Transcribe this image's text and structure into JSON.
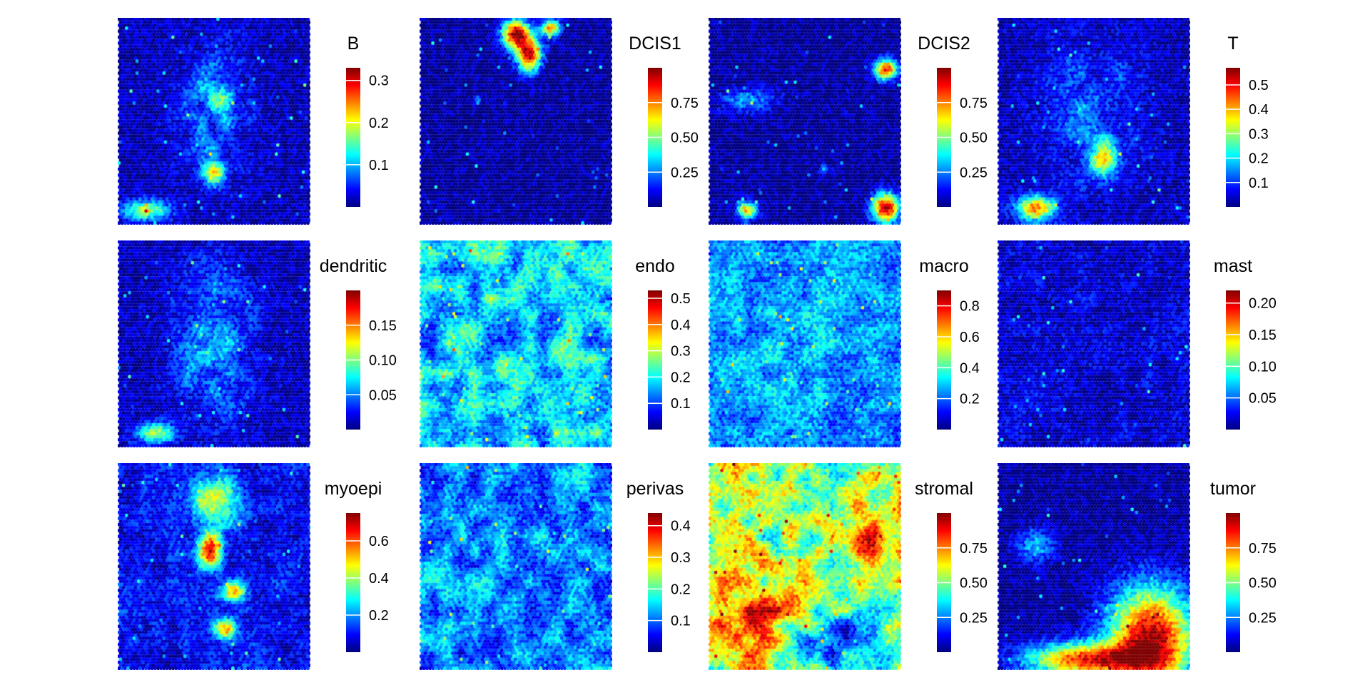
{
  "chart_data": [
    {
      "type": "heatmap",
      "title": "B",
      "ticks": [
        0.1,
        0.2,
        0.3
      ],
      "tick_labels": [
        "0.1",
        "0.2",
        "0.3"
      ],
      "range": [
        0,
        0.33
      ]
    },
    {
      "type": "heatmap",
      "title": "DCIS1",
      "ticks": [
        0.25,
        0.5,
        0.75
      ],
      "tick_labels": [
        "0.25",
        "0.50",
        "0.75"
      ],
      "range": [
        0,
        1.0
      ]
    },
    {
      "type": "heatmap",
      "title": "DCIS2",
      "ticks": [
        0.25,
        0.5,
        0.75
      ],
      "tick_labels": [
        "0.25",
        "0.50",
        "0.75"
      ],
      "range": [
        0,
        1.0
      ]
    },
    {
      "type": "heatmap",
      "title": "T",
      "ticks": [
        0.1,
        0.2,
        0.3,
        0.4,
        0.5
      ],
      "tick_labels": [
        "0.1",
        "0.2",
        "0.3",
        "0.4",
        "0.5"
      ],
      "range": [
        0,
        0.57
      ]
    },
    {
      "type": "heatmap",
      "title": "dendritic",
      "ticks": [
        0.05,
        0.1,
        0.15
      ],
      "tick_labels": [
        "0.05",
        "0.10",
        "0.15"
      ],
      "range": [
        0,
        0.2
      ]
    },
    {
      "type": "heatmap",
      "title": "endo",
      "ticks": [
        0.1,
        0.2,
        0.3,
        0.4,
        0.5
      ],
      "tick_labels": [
        "0.1",
        "0.2",
        "0.3",
        "0.4",
        "0.5"
      ],
      "range": [
        0,
        0.53
      ]
    },
    {
      "type": "heatmap",
      "title": "macro",
      "ticks": [
        0.2,
        0.4,
        0.6,
        0.8
      ],
      "tick_labels": [
        "0.2",
        "0.4",
        "0.6",
        "0.8"
      ],
      "range": [
        0,
        0.9
      ]
    },
    {
      "type": "heatmap",
      "title": "mast",
      "ticks": [
        0.05,
        0.1,
        0.15,
        0.2
      ],
      "tick_labels": [
        "0.05",
        "0.10",
        "0.15",
        "0.20"
      ],
      "range": [
        0,
        0.22
      ]
    },
    {
      "type": "heatmap",
      "title": "myoepi",
      "ticks": [
        0.2,
        0.4,
        0.6
      ],
      "tick_labels": [
        "0.2",
        "0.4",
        "0.6"
      ],
      "range": [
        0,
        0.75
      ]
    },
    {
      "type": "heatmap",
      "title": "perivas",
      "ticks": [
        0.1,
        0.2,
        0.3,
        0.4
      ],
      "tick_labels": [
        "0.1",
        "0.2",
        "0.3",
        "0.4"
      ],
      "range": [
        0,
        0.44
      ]
    },
    {
      "type": "heatmap",
      "title": "stromal",
      "ticks": [
        0.25,
        0.5,
        0.75
      ],
      "tick_labels": [
        "0.25",
        "0.50",
        "0.75"
      ],
      "range": [
        0,
        1.0
      ]
    },
    {
      "type": "heatmap",
      "title": "tumor",
      "ticks": [
        0.25,
        0.5,
        0.75
      ],
      "tick_labels": [
        "0.25",
        "0.50",
        "0.75"
      ],
      "range": [
        0,
        1.0
      ]
    }
  ],
  "colormap": [
    "#00007f",
    "#0000ff",
    "#007fff",
    "#00ffff",
    "#7fff7f",
    "#ffff00",
    "#ff7f00",
    "#ff0000",
    "#7f0000"
  ]
}
